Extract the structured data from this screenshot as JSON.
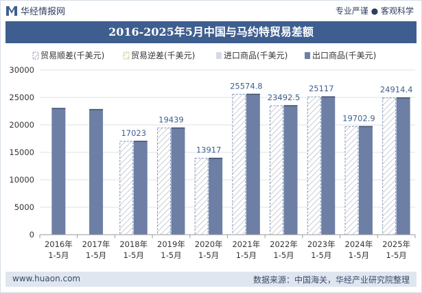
{
  "header": {
    "brand": "华经情报网",
    "slogan": "专业严谨 ● 客观科学"
  },
  "footer": {
    "website": "www.huaon.com",
    "source": "数据来源：中国海关，华经产业研究院整理"
  },
  "colors": {
    "title_bg": "#3f5e90",
    "export_bar": "#6e7fa5",
    "import_bar": "#d5dae6",
    "surplus_stripe": "#c6cbd6",
    "deficit_stripe": "#ddd7a8"
  },
  "chart_data": {
    "type": "bar",
    "title": "2016-2025年5月中国与马约特贸易差额",
    "categories": [
      "2016年\n1-5月",
      "2017年\n1-5月",
      "2018年\n1-5月",
      "2019年\n1-5月",
      "2020年\n1-5月",
      "2021年\n1-5月",
      "2022年\n1-5月",
      "2023年\n1-5月",
      "2024年\n1-5月",
      "2025年\n1-5月"
    ],
    "series": [
      {
        "name": "贸易顺差(千美元)",
        "values": [
          null,
          null,
          17023,
          19439,
          13917,
          25574.8,
          23492.5,
          25117,
          19702.9,
          24914.4
        ]
      },
      {
        "name": "贸易逆差(千美元)",
        "values": [
          null,
          null,
          null,
          null,
          null,
          null,
          null,
          null,
          null,
          null
        ]
      },
      {
        "name": "进口商品(千美元)",
        "values": [
          0,
          0,
          0,
          0,
          0,
          0,
          0,
          0,
          0,
          0
        ]
      },
      {
        "name": "出口商品(千美元)",
        "values": [
          23000,
          22800,
          17023,
          19439,
          13917,
          25574.8,
          23492.5,
          25117,
          19702.9,
          24914.4
        ]
      }
    ],
    "data_labels": [
      "",
      "",
      "17023",
      "19439",
      "13917",
      "25574.8",
      "23492.5",
      "25117",
      "19702.9",
      "24914.4"
    ],
    "ylim": [
      0,
      30000
    ],
    "yticks": [
      0,
      5000,
      10000,
      15000,
      20000,
      25000,
      30000
    ],
    "legend_position": "top"
  }
}
